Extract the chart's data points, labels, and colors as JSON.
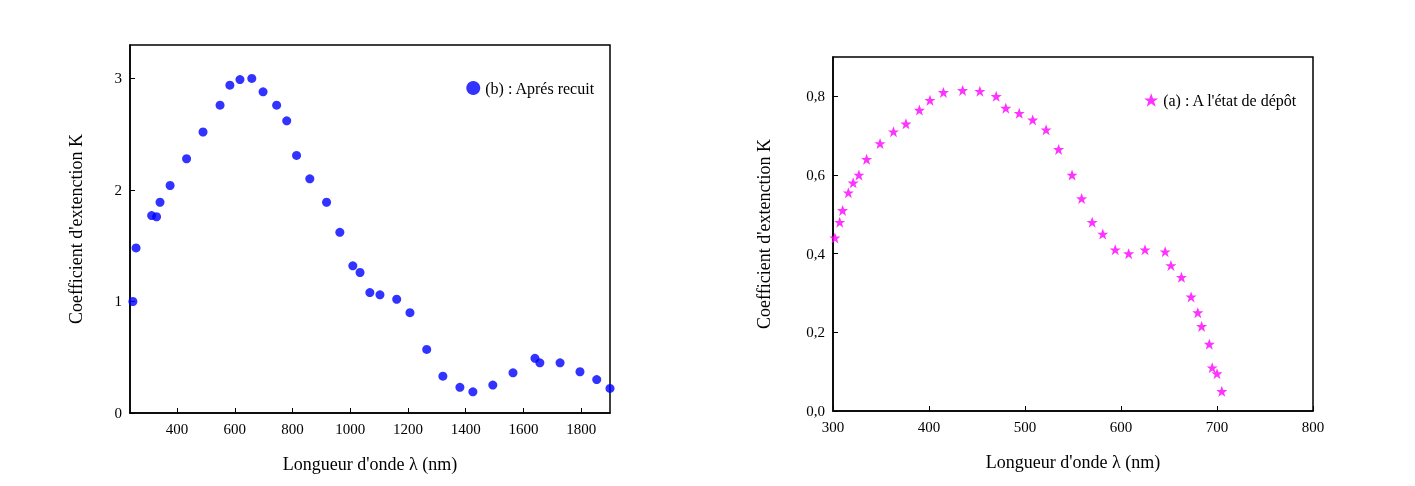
{
  "chart_data": [
    {
      "type": "scatter",
      "xlabel": "Longueur d'onde λ (nm)",
      "ylabel": "Coefficient d'extenction K",
      "legend": "top right",
      "marker": "circle",
      "xlim": [
        237,
        1900
      ],
      "xticks": [
        400,
        600,
        800,
        1000,
        1200,
        1400,
        1600,
        1800
      ],
      "ylim": [
        0,
        3.3
      ],
      "yticks": [
        0,
        1,
        2,
        3
      ],
      "series": [
        {
          "name": "(b) : Aprés recuit",
          "color": "#0000ff",
          "x": [
            247,
            258,
            312,
            329,
            341,
            376,
            433,
            490,
            549,
            583,
            618,
            659,
            698,
            745,
            780,
            814,
            860,
            918,
            964,
            1009,
            1034,
            1068,
            1103,
            1161,
            1207,
            1265,
            1321,
            1380,
            1425,
            1494,
            1564,
            1640,
            1657,
            1727,
            1796,
            1854,
            1900
          ],
          "values": [
            1.0,
            1.48,
            1.77,
            1.76,
            1.89,
            2.04,
            2.28,
            2.52,
            2.76,
            2.94,
            2.99,
            3.0,
            2.88,
            2.76,
            2.62,
            2.31,
            2.1,
            1.89,
            1.62,
            1.32,
            1.26,
            1.08,
            1.06,
            1.02,
            0.9,
            0.57,
            0.33,
            0.23,
            0.19,
            0.25,
            0.36,
            0.49,
            0.45,
            0.45,
            0.37,
            0.3,
            0.22
          ]
        }
      ]
    },
    {
      "type": "scatter",
      "xlabel": "Longueur d'onde λ (nm)",
      "ylabel": "Coefficient d'extenction K",
      "legend": "top right",
      "marker": "star",
      "xlim": [
        300,
        800
      ],
      "xticks": [
        300,
        400,
        500,
        600,
        700,
        800
      ],
      "ylim": [
        0,
        0.9
      ],
      "yticks": [
        {
          "value": 0,
          "label": "0,0"
        },
        {
          "value": 0.2,
          "label": "0,2"
        },
        {
          "value": 0.4,
          "label": "0,4"
        },
        {
          "value": 0.6,
          "label": "0,6"
        },
        {
          "value": 0.8,
          "label": "0,8"
        }
      ],
      "series": [
        {
          "name": "(a) : A l'état de dépôt",
          "color": "#ff00ff",
          "x": [
            302,
            307,
            310,
            316,
            321,
            327,
            335,
            349,
            363,
            376,
            390,
            401,
            415,
            435,
            453,
            470,
            480,
            494,
            508,
            522,
            535,
            549,
            559,
            570,
            581,
            594,
            608,
            625,
            646,
            652,
            663,
            673,
            680,
            684,
            692,
            695,
            700,
            705
          ],
          "values": [
            0.44,
            0.48,
            0.51,
            0.555,
            0.58,
            0.6,
            0.64,
            0.68,
            0.71,
            0.73,
            0.765,
            0.79,
            0.81,
            0.815,
            0.813,
            0.8,
            0.77,
            0.757,
            0.74,
            0.715,
            0.665,
            0.6,
            0.54,
            0.48,
            0.45,
            0.41,
            0.4,
            0.41,
            0.405,
            0.37,
            0.34,
            0.29,
            0.25,
            0.215,
            0.17,
            0.11,
            0.095,
            0.05
          ]
        }
      ]
    }
  ]
}
